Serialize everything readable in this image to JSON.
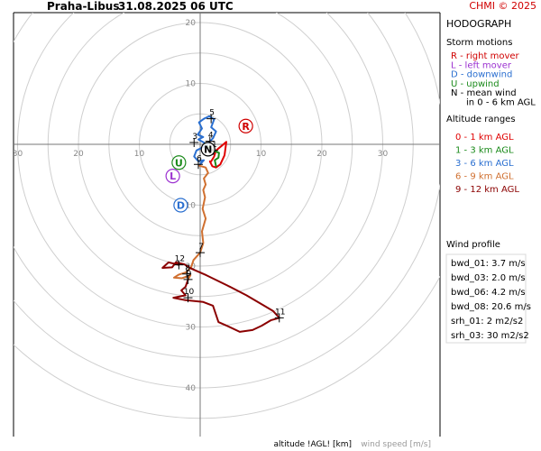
{
  "header": {
    "station": "Praha-Libus",
    "datetime": "31.08.2025 06 UTC",
    "credit": "CHMI © 2025"
  },
  "sidebar": {
    "title": "HODOGRAPH",
    "storm_motions_heading": "Storm motions",
    "storm_motions": [
      {
        "text": "R - right mover",
        "color": "#d00000"
      },
      {
        "text": "L - left mover",
        "color": "#9b30d0"
      },
      {
        "text": "D - downwind",
        "color": "#2a6fd0"
      },
      {
        "text": "U - upwind",
        "color": "#1a8a1a"
      },
      {
        "text": "N - mean wind",
        "color": "#000000"
      },
      {
        "text": "in 0 - 6 km AGL",
        "color": "#000000"
      }
    ],
    "altitude_heading": "Altitude ranges",
    "altitude_ranges": [
      {
        "text": "0 - 1 km AGL",
        "color": "#e00000"
      },
      {
        "text": "1 - 3 km AGL",
        "color": "#1a8a1a"
      },
      {
        "text": "3 - 6 km AGL",
        "color": "#2a6fd0"
      },
      {
        "text": "6 - 9 km AGL",
        "color": "#d07030"
      },
      {
        "text": "9 - 12 km AGL",
        "color": "#8b0000"
      }
    ],
    "wind_profile_heading": "Wind profile",
    "wind_profile": [
      "bwd_01: 3.7 m/s",
      "bwd_03: 2.0 m/s",
      "bwd_06: 4.2 m/s",
      "bwd_08: 20.6 m/s",
      "srh_01: 2 m2/s2",
      "srh_03: 30 m2/s2"
    ]
  },
  "footer": {
    "altitude_label": "altitude !AGL! [km]",
    "speed_label": "wind speed [m/s]"
  },
  "chart_data": {
    "type": "hodograph",
    "ring_values": [
      5,
      10,
      15,
      20,
      25,
      30,
      35,
      40,
      45
    ],
    "ring_labels": [
      10,
      20,
      30,
      40
    ],
    "x_labels": [
      30,
      20,
      10,
      10,
      20,
      30
    ],
    "grid": true,
    "storm_markers": [
      {
        "label": "R",
        "u": 7.5,
        "v": 3.0,
        "color": "#d00000"
      },
      {
        "label": "L",
        "u": -4.5,
        "v": -5.2,
        "color": "#9b30d0"
      },
      {
        "label": "D",
        "u": -3.2,
        "v": -10.0,
        "color": "#2a6fd0"
      },
      {
        "label": "U",
        "u": -3.5,
        "v": -3.0,
        "color": "#1a8a1a"
      },
      {
        "label": "N",
        "u": 1.3,
        "v": -0.8,
        "color": "#000000"
      }
    ],
    "altitude_marks": [
      {
        "label": "1",
        "u": 2.2,
        "v": -1.0
      },
      {
        "label": "3",
        "u": -1.0,
        "v": 0.3
      },
      {
        "label": "4",
        "u": 1.6,
        "v": 0.5
      },
      {
        "label": "5",
        "u": 1.8,
        "v": 4.2
      },
      {
        "label": "6",
        "u": -0.3,
        "v": -3.3
      },
      {
        "label": "7",
        "u": 0.0,
        "v": -17.8
      },
      {
        "label": "8",
        "u": -2.2,
        "v": -21.3
      },
      {
        "label": "9",
        "u": -2.0,
        "v": -22.2
      },
      {
        "label": "10",
        "u": -2.0,
        "v": -25.2
      },
      {
        "label": "11",
        "u": 13.0,
        "v": -28.5
      },
      {
        "label": "12",
        "u": -3.5,
        "v": -19.8
      }
    ],
    "segments": [
      {
        "range": "0 - 1 km AGL",
        "color": "#e00000",
        "points": [
          [
            1.8,
            -2.8
          ],
          [
            2.3,
            -2.0
          ],
          [
            2.6,
            -1.0
          ],
          [
            3.6,
            -0.2
          ],
          [
            4.3,
            0.4
          ],
          [
            4.0,
            -1.8
          ],
          [
            3.3,
            -3.3
          ],
          [
            2.6,
            -3.8
          ],
          [
            2.0,
            -3.6
          ],
          [
            1.6,
            -2.8
          ]
        ]
      },
      {
        "range": "1 - 3 km AGL",
        "color": "#1a8a1a",
        "points": [
          [
            2.6,
            -3.6
          ],
          [
            2.4,
            -2.6
          ],
          [
            3.0,
            -2.2
          ],
          [
            3.1,
            -1.4
          ],
          [
            2.1,
            -1.0
          ],
          [
            1.2,
            -0.3
          ],
          [
            0.6,
            0.3
          ]
        ]
      },
      {
        "range": "3 - 6 km AGL",
        "color": "#2a6fd0",
        "points": [
          [
            0.6,
            0.3
          ],
          [
            -0.3,
            0.8
          ],
          [
            0.5,
            1.2
          ],
          [
            -0.4,
            1.6
          ],
          [
            0.3,
            2.6
          ],
          [
            -0.2,
            3.6
          ],
          [
            0.6,
            4.2
          ],
          [
            1.5,
            4.6
          ],
          [
            2.3,
            4.1
          ],
          [
            1.8,
            2.8
          ],
          [
            2.6,
            2.1
          ],
          [
            2.1,
            1.0
          ],
          [
            0.8,
            -0.3
          ],
          [
            -0.6,
            -1.0
          ],
          [
            -1.0,
            -2.0
          ],
          [
            -0.3,
            -2.8
          ],
          [
            0.6,
            -2.6
          ],
          [
            -0.2,
            -3.5
          ]
        ]
      },
      {
        "range": "6 - 9 km AGL",
        "color": "#d07030",
        "points": [
          [
            -0.2,
            -3.5
          ],
          [
            0.9,
            -3.8
          ],
          [
            1.3,
            -4.7
          ],
          [
            0.6,
            -5.6
          ],
          [
            0.9,
            -6.6
          ],
          [
            0.5,
            -7.5
          ],
          [
            0.8,
            -8.7
          ],
          [
            0.4,
            -10.6
          ],
          [
            0.9,
            -12.2
          ],
          [
            0.3,
            -14.3
          ],
          [
            0.5,
            -16.2
          ],
          [
            0.0,
            -17.8
          ],
          [
            -1.1,
            -19.0
          ],
          [
            -1.5,
            -20.2
          ],
          [
            -2.3,
            -21.0
          ],
          [
            -3.5,
            -21.4
          ],
          [
            -4.3,
            -21.9
          ],
          [
            -3.0,
            -22.0
          ],
          [
            -1.6,
            -21.5
          ],
          [
            -2.0,
            -22.2
          ]
        ]
      },
      {
        "range": "9 - 12 km AGL",
        "color": "#8b0000",
        "points": [
          [
            -2.0,
            -22.2
          ],
          [
            -2.4,
            -23.4
          ],
          [
            -3.1,
            -24.0
          ],
          [
            -2.4,
            -24.8
          ],
          [
            -4.4,
            -25.2
          ],
          [
            -2.4,
            -25.6
          ],
          [
            0.5,
            -25.9
          ],
          [
            2.1,
            -26.5
          ],
          [
            3.0,
            -29.2
          ],
          [
            4.6,
            -29.9
          ],
          [
            6.5,
            -30.8
          ],
          [
            8.6,
            -30.5
          ],
          [
            10.1,
            -29.8
          ],
          [
            11.6,
            -28.9
          ],
          [
            13.0,
            -28.5
          ],
          [
            12.0,
            -27.4
          ],
          [
            10.5,
            -26.5
          ],
          [
            7.6,
            -24.8
          ],
          [
            4.5,
            -23.2
          ],
          [
            1.0,
            -21.5
          ],
          [
            -1.5,
            -20.4
          ],
          [
            -2.6,
            -19.7
          ],
          [
            -4.0,
            -19.4
          ],
          [
            -4.6,
            -20.2
          ],
          [
            -6.2,
            -20.3
          ],
          [
            -5.2,
            -19.4
          ],
          [
            -4.3,
            -19.6
          ],
          [
            -3.5,
            -19.8
          ]
        ]
      }
    ]
  }
}
